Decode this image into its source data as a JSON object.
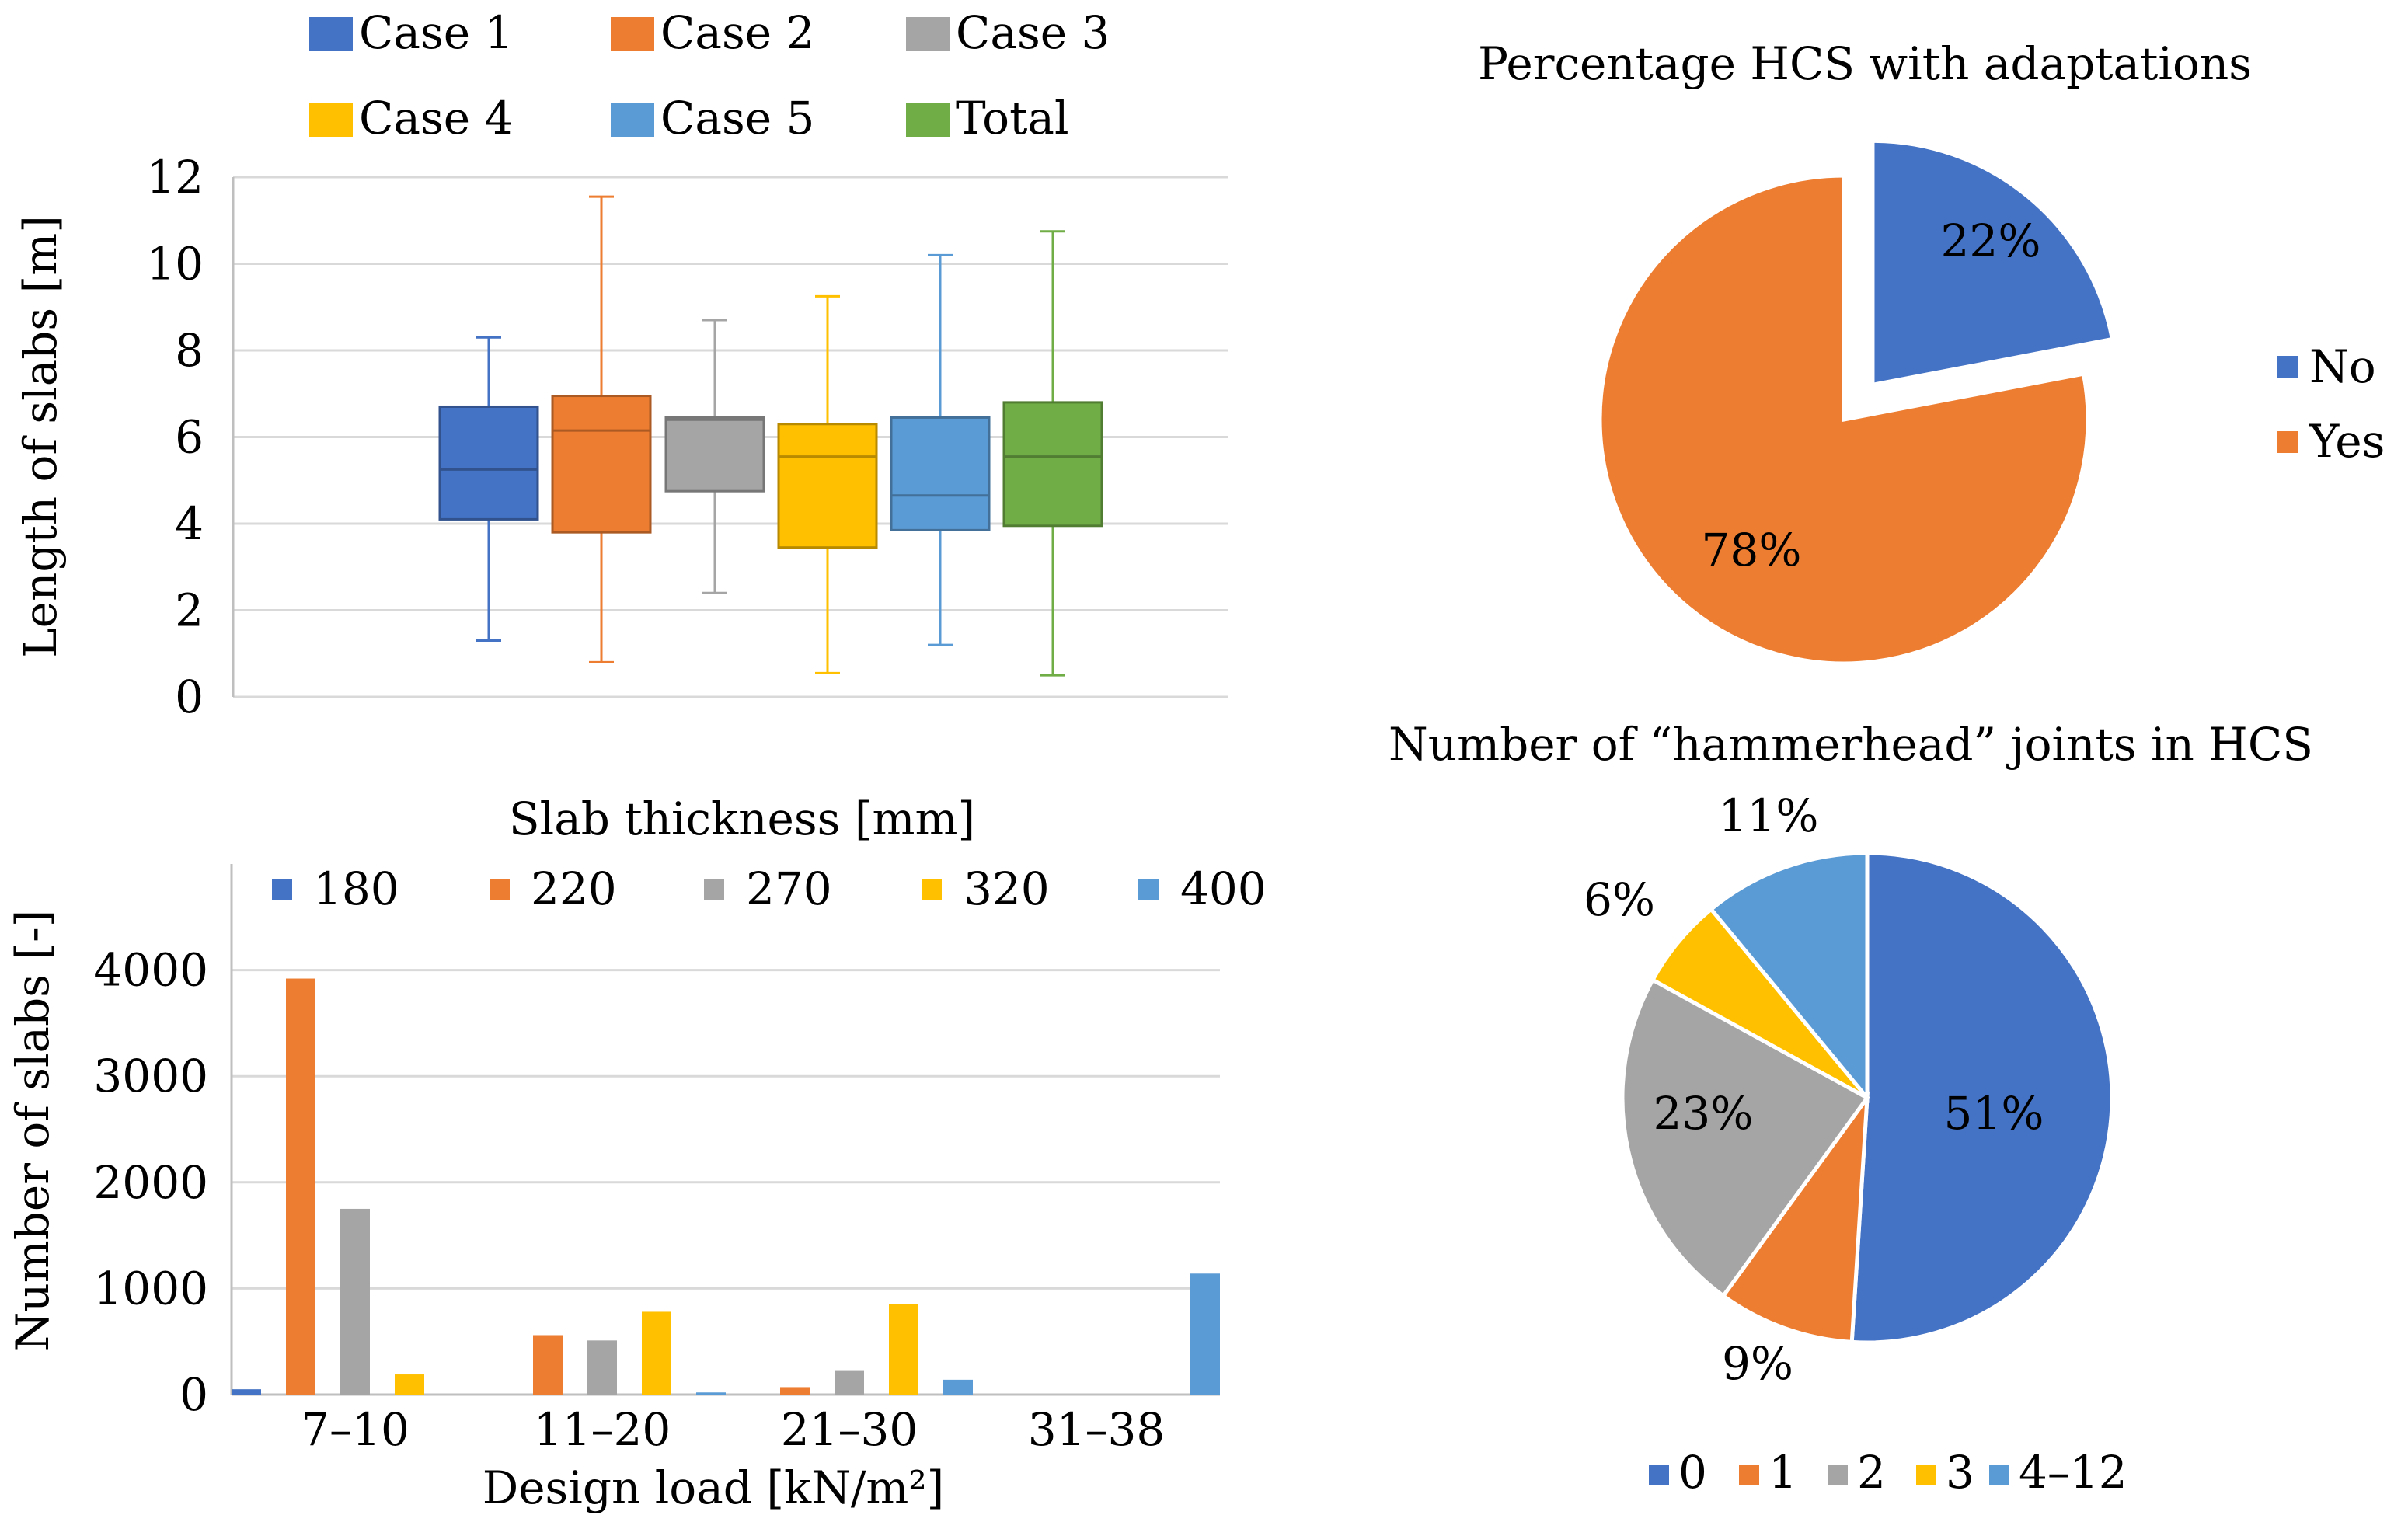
{
  "colors": {
    "blue": "#4472C4",
    "orange": "#ED7D31",
    "gray": "#A5A5A5",
    "yellow": "#FFC000",
    "lightblue": "#5B9BD5",
    "green": "#70AD47",
    "grid": "#D9D9D9",
    "axis": "#BFBFBF"
  },
  "chart_data": [
    {
      "type": "box",
      "ylabel": "Length of slabs [m]",
      "ylim": [
        0,
        12
      ],
      "yticks": [
        "0",
        "2",
        "4",
        "6",
        "8",
        "10",
        "12"
      ],
      "legend": [
        "Case 1",
        "Case 2",
        "Case 3",
        "Case 4",
        "Case 5",
        "Total"
      ],
      "series": [
        {
          "name": "Case 1",
          "min": 1.3,
          "q1": 4.1,
          "median": 5.25,
          "q3": 6.7,
          "max": 8.3
        },
        {
          "name": "Case 2",
          "min": 0.8,
          "q1": 3.8,
          "median": 6.15,
          "q3": 6.95,
          "max": 11.55
        },
        {
          "name": "Case 3",
          "min": 2.4,
          "q1": 4.75,
          "median": 6.4,
          "q3": 6.45,
          "max": 8.7
        },
        {
          "name": "Case 4",
          "min": 0.55,
          "q1": 3.45,
          "median": 5.55,
          "q3": 6.3,
          "max": 9.25
        },
        {
          "name": "Case 5",
          "min": 1.2,
          "q1": 3.85,
          "median": 4.65,
          "q3": 6.45,
          "max": 10.2
        },
        {
          "name": "Total",
          "min": 0.5,
          "q1": 3.95,
          "median": 5.55,
          "q3": 6.8,
          "max": 10.75
        }
      ]
    },
    {
      "type": "bar",
      "title": "Slab thickness [mm]",
      "xlabel": "Design load [kN/m²]",
      "ylabel": "Number of slabs [-]",
      "ylim": [
        0,
        5000
      ],
      "yticks": [
        "0",
        "1000",
        "2000",
        "3000",
        "4000"
      ],
      "categories": [
        "7–10",
        "11–20",
        "21–30",
        "31–38"
      ],
      "series": [
        {
          "name": "180",
          "values": [
            50,
            0,
            0,
            0
          ]
        },
        {
          "name": "220",
          "values": [
            3920,
            560,
            70,
            0
          ]
        },
        {
          "name": "270",
          "values": [
            1750,
            510,
            230,
            0
          ]
        },
        {
          "name": "320",
          "values": [
            190,
            780,
            850,
            0
          ]
        },
        {
          "name": "400",
          "values": [
            0,
            20,
            140,
            1140
          ]
        }
      ]
    },
    {
      "type": "pie",
      "title": "Percentage HCS with adaptations",
      "labels": [
        "No",
        "Yes"
      ],
      "values": [
        22,
        78
      ],
      "value_labels": [
        "22%",
        "78%"
      ]
    },
    {
      "type": "pie",
      "title": "Number of “hammerhead” joints in HCS",
      "labels": [
        "0",
        "1",
        "2",
        "3",
        "4–12"
      ],
      "values": [
        51,
        9,
        23,
        6,
        11
      ],
      "value_labels": [
        "51%",
        "9%",
        "23%",
        "6%",
        "11%"
      ]
    }
  ]
}
